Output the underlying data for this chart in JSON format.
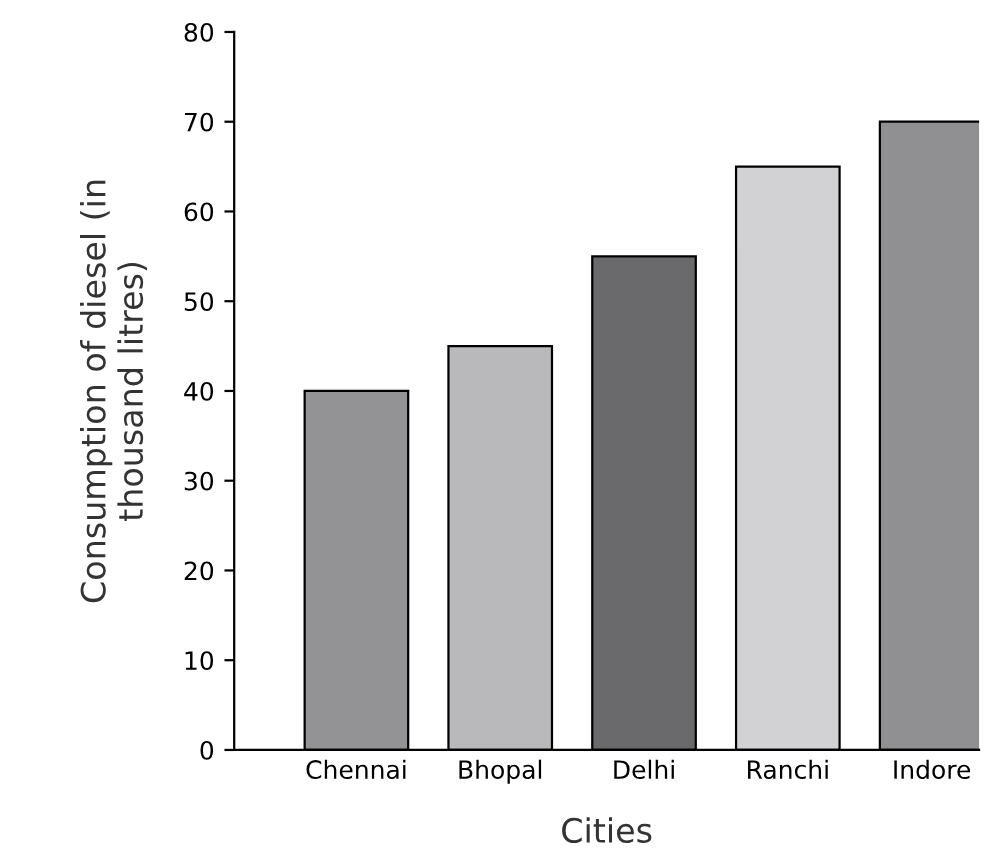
{
  "chart_data": {
    "type": "bar",
    "xlabel": "Cities",
    "ylabel": "Consumption of diesel (in\nthousand litres)",
    "categories": [
      "Chennai",
      "Bhopal",
      "Delhi",
      "Ranchi",
      "Indore"
    ],
    "values": [
      40,
      45,
      55,
      65,
      70
    ],
    "colors": [
      "#939395",
      "#b9b9bb",
      "#6a6a6c",
      "#d2d2d4",
      "#909092"
    ],
    "ylim": [
      0,
      80
    ],
    "yticks": [
      0,
      10,
      20,
      30,
      40,
      50,
      60,
      70,
      80
    ],
    "grid": false
  }
}
